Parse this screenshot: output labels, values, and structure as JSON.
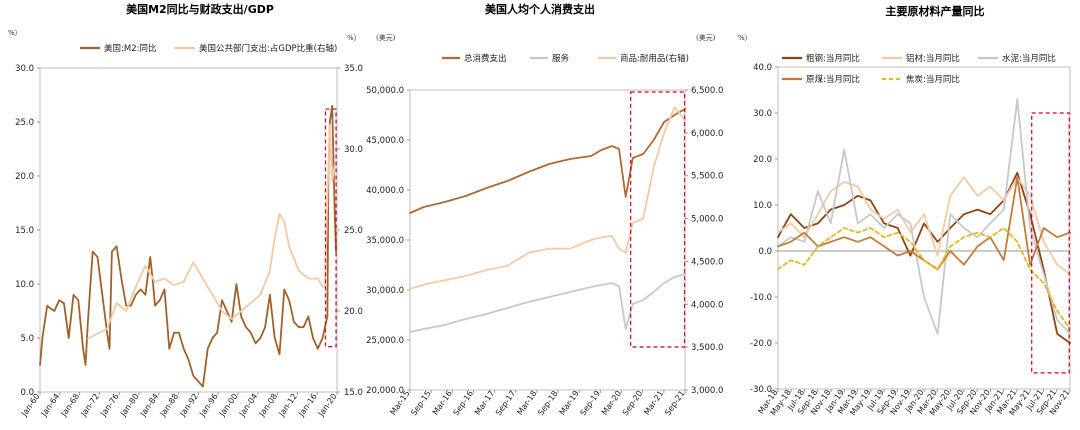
{
  "chart_data": [
    {
      "type": "line",
      "title": "美国M2同比与财政支出/GDP",
      "y_unit_left": "%）",
      "y_unit_right": "%）",
      "ylim": [
        0,
        30
      ],
      "ylim_right": [
        15,
        35
      ],
      "yticks": [
        "0.0",
        "5.0",
        "10.0",
        "15.0",
        "20.0",
        "25.0",
        "30.0"
      ],
      "yticks_right": [
        "15.0",
        "20.0",
        "25.0",
        "30.0",
        "35.0"
      ],
      "xlim": [
        1960,
        2022
      ],
      "xtick_labels": [
        "Jan-60",
        "Jan-64",
        "Jan-68",
        "Jan-72",
        "Jan-76",
        "Jan-80",
        "Jan-84",
        "Jan-88",
        "Jan-92",
        "Jan-96",
        "Jan-00",
        "Jan-04",
        "Jan-08",
        "Jan-12",
        "Jan-16",
        "Jan-20"
      ],
      "legend": [
        "美国:M2:同比",
        "美国公共部门支出:占GDP比重(右轴)"
      ],
      "colors": [
        "#a0622d",
        "#f5c9a3"
      ],
      "highlight_box": {
        "x_from": 2019.6,
        "x_to": 2021.8,
        "y_from": 4.2,
        "y_to": 26.2,
        "color": "#d0021b"
      },
      "series": [
        {
          "name": "美国:M2:同比",
          "axis": "left",
          "x": [
            1960,
            1960.5,
            1961,
            1961.5,
            1962,
            1963,
            1964,
            1965,
            1966,
            1967,
            1968,
            1969,
            1969.5,
            1970,
            1971,
            1972,
            1973,
            1974,
            1974.5,
            1975,
            1976,
            1977,
            1978,
            1979,
            1980,
            1981,
            1982,
            1983,
            1983.5,
            1984,
            1985,
            1986,
            1987,
            1988,
            1989,
            1990,
            1991,
            1992,
            1993,
            1994,
            1995,
            1996,
            1997,
            1998,
            1999,
            2000,
            2001,
            2002,
            2003,
            2004,
            2005,
            2006,
            2007,
            2008,
            2009,
            2010,
            2011,
            2012,
            2013,
            2014,
            2015,
            2016,
            2017,
            2018,
            2019,
            2019.5,
            2020,
            2020.2,
            2020.5,
            2021,
            2021.5,
            2021.8
          ],
          "y": [
            2.5,
            5.0,
            6.5,
            8.0,
            7.8,
            7.5,
            8.5,
            8.2,
            5.0,
            9.0,
            8.5,
            4.0,
            2.5,
            6.5,
            13.0,
            12.5,
            9.0,
            5.5,
            4.0,
            13.0,
            13.5,
            10.5,
            8.0,
            8.0,
            9.0,
            9.5,
            9.0,
            12.5,
            10.5,
            8.0,
            8.5,
            9.5,
            4.0,
            5.5,
            5.5,
            4.0,
            3.0,
            1.5,
            1.0,
            0.5,
            4.0,
            5.0,
            5.5,
            8.5,
            7.5,
            6.5,
            10.0,
            7.0,
            6.0,
            5.5,
            4.5,
            5.0,
            6.0,
            9.0,
            5.0,
            3.5,
            9.5,
            8.5,
            6.5,
            6.0,
            6.0,
            7.0,
            5.0,
            4.0,
            5.0,
            6.0,
            7.0,
            20.0,
            25.0,
            26.5,
            17.0,
            13.0
          ]
        },
        {
          "name": "美国公共部门支出:占GDP比重(右轴)",
          "axis": "right",
          "x": [
            1970,
            1972,
            1974,
            1976,
            1978,
            1980,
            1982,
            1984,
            1986,
            1988,
            1990,
            1992,
            1994,
            1996,
            1998,
            2000,
            2002,
            2004,
            2006,
            2008,
            2009,
            2010,
            2011,
            2012,
            2014,
            2016,
            2018,
            2019,
            2019.5,
            2020,
            2020.5,
            2021,
            2021.5
          ],
          "y": [
            18.3,
            18.6,
            18.9,
            20.5,
            20.0,
            21.5,
            22.8,
            21.8,
            22.0,
            21.6,
            21.8,
            23.0,
            22.0,
            21.0,
            20.0,
            19.5,
            20.0,
            20.5,
            21.0,
            22.5,
            24.5,
            26.0,
            25.5,
            24.0,
            22.5,
            22.0,
            22.0,
            21.5,
            21.5,
            27.0,
            31.5,
            28.0,
            29.0
          ]
        }
      ]
    },
    {
      "type": "line",
      "title": "美国人均个人消费支出",
      "y_unit_left": "(美元)",
      "y_unit_right": "(美元)",
      "ylim": [
        20000,
        50000
      ],
      "ylim_right": [
        3000,
        6500
      ],
      "yticks": [
        "20,000.0",
        "25,000.0",
        "30,000.0",
        "35,000.0",
        "40,000.0",
        "45,000.0",
        "50,000.0"
      ],
      "yticks_right": [
        "3,000.0",
        "3,500.0",
        "4,000.0",
        "4,500.0",
        "5,000.0",
        "5,500.0",
        "6,000.0",
        "6,500.0"
      ],
      "xlim": [
        2015.17,
        2021.75
      ],
      "xtick_labels": [
        "Mar-15",
        "Sep-15",
        "Mar-16",
        "Sep-16",
        "Mar-17",
        "Sep-17",
        "Mar-18",
        "Sep-18",
        "Mar-19",
        "Sep-19",
        "Mar-20",
        "Sep-20",
        "Mar-21",
        "Sep-21"
      ],
      "legend": [
        "总消费支出",
        "服务",
        "商品:耐用品(右轴)"
      ],
      "colors": [
        "#b06a35",
        "#c8c8c8",
        "#f5c9a3"
      ],
      "highlight_box": {
        "x_from": 2020.45,
        "x_to": 2021.74,
        "y_from": 24300,
        "y_to": 49800,
        "color": "#d0021b"
      },
      "series": [
        {
          "name": "总消费支出",
          "axis": "left",
          "x": [
            2015.17,
            2015.5,
            2016,
            2016.5,
            2017,
            2017.5,
            2018,
            2018.5,
            2019,
            2019.5,
            2019.75,
            2020,
            2020.17,
            2020.33,
            2020.5,
            2020.75,
            2021,
            2021.25,
            2021.5,
            2021.75
          ],
          "y": [
            37700,
            38300,
            38800,
            39400,
            40200,
            40900,
            41800,
            42600,
            43100,
            43400,
            44000,
            44400,
            44100,
            39300,
            43200,
            43600,
            45000,
            46800,
            47500,
            48100
          ]
        },
        {
          "name": "服务",
          "axis": "left",
          "x": [
            2015.17,
            2015.5,
            2016,
            2016.5,
            2017,
            2017.5,
            2018,
            2018.5,
            2019,
            2019.5,
            2019.75,
            2020,
            2020.17,
            2020.33,
            2020.5,
            2020.75,
            2021,
            2021.25,
            2021.5,
            2021.75
          ],
          "y": [
            25800,
            26100,
            26500,
            27100,
            27600,
            28200,
            28800,
            29300,
            29800,
            30300,
            30500,
            30700,
            30400,
            26100,
            28600,
            29000,
            29800,
            30700,
            31300,
            31600
          ]
        },
        {
          "name": "商品:耐用品(右轴)",
          "axis": "right",
          "x": [
            2015.17,
            2015.5,
            2016,
            2016.5,
            2017,
            2017.5,
            2018,
            2018.5,
            2019,
            2019.5,
            2019.75,
            2020,
            2020.17,
            2020.33,
            2020.5,
            2020.75,
            2021,
            2021.25,
            2021.5,
            2021.75
          ],
          "y": [
            4180,
            4230,
            4280,
            4330,
            4400,
            4450,
            4600,
            4650,
            4650,
            4750,
            4780,
            4800,
            4650,
            4600,
            4950,
            5000,
            5600,
            6000,
            6300,
            6150
          ]
        }
      ]
    },
    {
      "type": "line",
      "title": "主要原材料产量同比",
      "y_unit_left": "%）",
      "ylim": [
        -30,
        40
      ],
      "yticks": [
        "-30.0",
        "-20.0",
        "-10.0",
        "0.0",
        "10.0",
        "20.0",
        "30.0",
        "40.0"
      ],
      "xlim": [
        2018.17,
        2021.83
      ],
      "xtick_labels": [
        "Mar-18",
        "May-18",
        "Jul-18",
        "Sep-18",
        "Nov-18",
        "Jan-19",
        "Mar-19",
        "May-19",
        "Jul-19",
        "Sep-19",
        "Nov-19",
        "Jan-20",
        "Mar-20",
        "May-20",
        "Jul-20",
        "Sep-20",
        "Nov-20",
        "Jan-21",
        "Mar-21",
        "May-21",
        "Jul-21",
        "Sep-21",
        "Nov-21"
      ],
      "legend": [
        "粗钢:当月同比",
        "铝材:当月同比",
        "水泥:当月同比",
        "原煤:当月同比",
        "焦炭:当月同比"
      ],
      "colors": [
        "#8b4513",
        "#f5c9a3",
        "#c8c8c8",
        "#c57a3e",
        "#e8b820"
      ],
      "highlight_box": {
        "x_from": 2021.35,
        "x_to": 2021.82,
        "y_from": -26.5,
        "y_to": 30.0,
        "color": "#d0021b"
      },
      "series": [
        {
          "name": "粗钢:当月同比",
          "x": [
            2018.17,
            2018.33,
            2018.5,
            2018.67,
            2018.83,
            2019,
            2019.17,
            2019.33,
            2019.5,
            2019.67,
            2019.83,
            2020,
            2020.17,
            2020.33,
            2020.5,
            2020.67,
            2020.83,
            2021,
            2021.17,
            2021.33,
            2021.5,
            2021.67,
            2021.83
          ],
          "y": [
            3,
            8,
            5,
            6,
            9,
            10,
            12,
            11,
            6,
            5,
            -1,
            6,
            2,
            5,
            8,
            9,
            8,
            11,
            17,
            8,
            -4,
            -18,
            -20
          ]
        },
        {
          "name": "铝材:当月同比",
          "x": [
            2018.17,
            2018.33,
            2018.5,
            2018.67,
            2018.83,
            2019,
            2019.17,
            2019.33,
            2019.5,
            2019.67,
            2019.83,
            2020,
            2020.17,
            2020.33,
            2020.5,
            2020.67,
            2020.83,
            2021,
            2021.17,
            2021.33,
            2021.5,
            2021.67,
            2021.83
          ],
          "y": [
            4,
            6,
            3,
            8,
            13,
            15,
            14,
            9,
            7,
            9,
            4,
            8,
            -1,
            12,
            16,
            12,
            14,
            11,
            16,
            12,
            2,
            -3,
            -5
          ]
        },
        {
          "name": "水泥:当月同比",
          "x": [
            2018.17,
            2018.33,
            2018.5,
            2018.67,
            2018.83,
            2019,
            2019.17,
            2019.33,
            2019.5,
            2019.67,
            2019.83,
            2020,
            2020.17,
            2020.33,
            2020.5,
            2020.67,
            2020.83,
            2021,
            2021.17,
            2021.33,
            2021.5,
            2021.67,
            2021.83
          ],
          "y": [
            1,
            3,
            2,
            13,
            6,
            22,
            6,
            8,
            5,
            8,
            6,
            -10,
            -18,
            8,
            5,
            3,
            6,
            9,
            33,
            5,
            -5,
            -15,
            -18
          ]
        },
        {
          "name": "原煤:当月同比",
          "x": [
            2018.17,
            2018.33,
            2018.5,
            2018.67,
            2018.83,
            2019,
            2019.17,
            2019.33,
            2019.5,
            2019.67,
            2019.83,
            2020,
            2020.17,
            2020.33,
            2020.5,
            2020.67,
            2020.83,
            2021,
            2021.17,
            2021.33,
            2021.5,
            2021.67,
            2021.83
          ],
          "y": [
            1,
            2,
            4,
            1,
            2,
            3,
            2,
            3,
            1,
            -1,
            0,
            -2,
            -4,
            0,
            -3,
            1,
            3,
            -2,
            16,
            -3,
            5,
            3,
            4
          ]
        },
        {
          "name": "焦炭:当月同比",
          "x": [
            2018.17,
            2018.33,
            2018.5,
            2018.67,
            2018.83,
            2019,
            2019.17,
            2019.33,
            2019.5,
            2019.67,
            2019.83,
            2020,
            2020.17,
            2020.33,
            2020.5,
            2020.67,
            2020.83,
            2021,
            2021.17,
            2021.33,
            2021.5,
            2021.67,
            2021.83
          ],
          "y": [
            -4,
            -2,
            -3,
            1,
            3,
            5,
            4,
            5,
            3,
            4,
            2,
            -2,
            -4,
            1,
            3,
            4,
            3,
            5,
            2,
            -4,
            -7,
            -13,
            -17
          ]
        }
      ]
    }
  ]
}
